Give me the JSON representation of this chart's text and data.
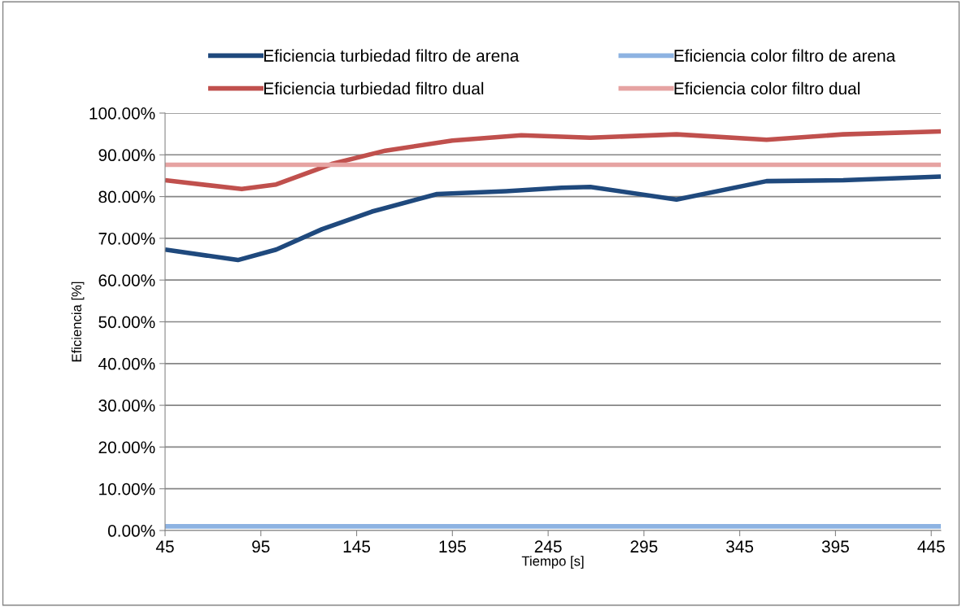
{
  "chart_data": {
    "type": "line",
    "xlabel": "Tiempo [s]",
    "ylabel": "Eficiencia [%]",
    "xlim": [
      45,
      450
    ],
    "xticks": [
      45,
      95,
      145,
      195,
      245,
      295,
      345,
      395,
      445
    ],
    "ylim": [
      0,
      100
    ],
    "yticks": [
      {
        "value": 0,
        "label": "0.00%"
      },
      {
        "value": 10,
        "label": "10.00%"
      },
      {
        "value": 20,
        "label": "20.00%"
      },
      {
        "value": 30,
        "label": "30.00%"
      },
      {
        "value": 40,
        "label": "40.00%"
      },
      {
        "value": 50,
        "label": "50.00%"
      },
      {
        "value": 60,
        "label": "60.00%"
      },
      {
        "value": 70,
        "label": "70.00%"
      },
      {
        "value": 80,
        "label": "80.00%"
      },
      {
        "value": 90,
        "label": "90.00%"
      },
      {
        "value": 100,
        "label": "100.00%"
      }
    ],
    "grid": "y",
    "legend": "top",
    "marker": "none",
    "line_style": "solid",
    "series": [
      {
        "name": "Eficiencia turbiedad filtro de arena",
        "color": "#1f497d",
        "x": [
          45,
          83,
          103,
          127,
          153,
          187,
          223,
          252,
          267,
          312,
          359,
          399,
          450
        ],
        "values": [
          67.3,
          64.8,
          67.3,
          72.2,
          76.4,
          80.6,
          81.3,
          82.1,
          82.3,
          79.3,
          83.7,
          83.9,
          84.8
        ]
      },
      {
        "name": "Eficiencia turbiedad filtro dual",
        "color": "#c0504d",
        "x": [
          45,
          85,
          103,
          132,
          160,
          195,
          231,
          267,
          312,
          359,
          399,
          450
        ],
        "values": [
          83.9,
          81.8,
          82.9,
          87.8,
          91.0,
          93.4,
          94.7,
          94.1,
          94.9,
          93.6,
          94.9,
          95.6
        ]
      },
      {
        "name": "Eficiencia color filtro de arena",
        "color": "#8db3e2",
        "x": [
          45,
          450
        ],
        "values": [
          1.0,
          1.0
        ]
      },
      {
        "name": "Eficiencia color filtro dual",
        "color": "#e6a3a2",
        "x": [
          45,
          450
        ],
        "values": [
          87.6,
          87.6
        ]
      }
    ]
  }
}
